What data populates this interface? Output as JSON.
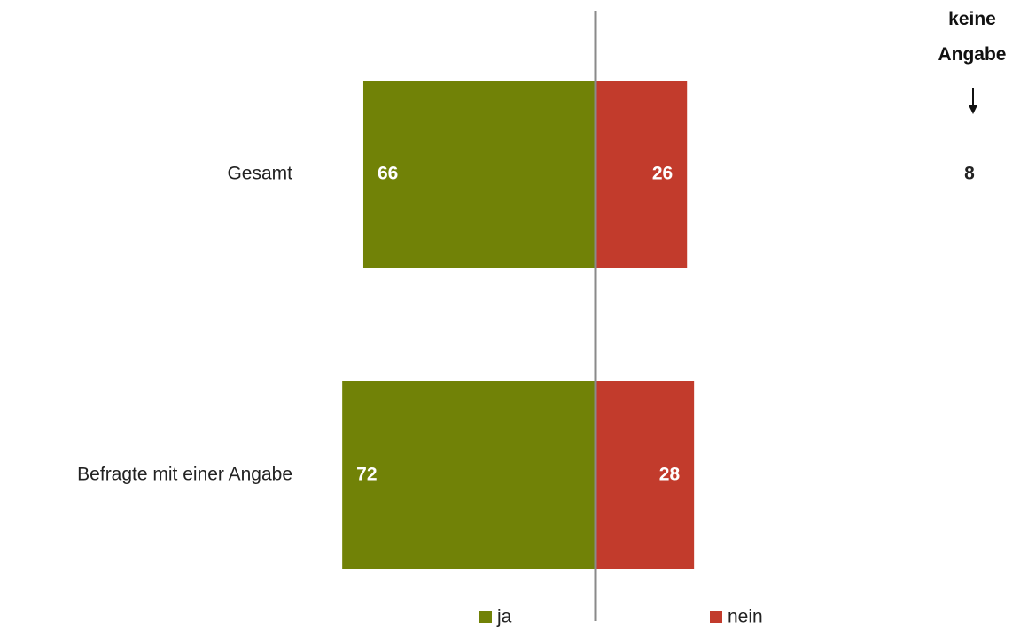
{
  "chart_data": {
    "type": "diverging_bar",
    "categories": [
      "Gesamt",
      "Befragte mit einer Angabe"
    ],
    "series": [
      {
        "name": "ja",
        "color": "#718207",
        "values": [
          66,
          72
        ]
      },
      {
        "name": "nein",
        "color": "#c23b2c",
        "values": [
          26,
          28
        ]
      }
    ],
    "no_answer": {
      "label": "keine Angabe",
      "values": [
        8,
        null
      ]
    }
  }
}
